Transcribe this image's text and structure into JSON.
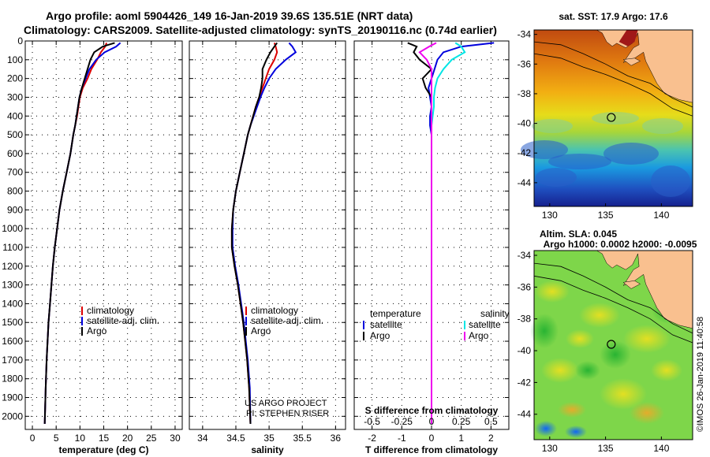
{
  "header": {
    "title_line1": "Argo profile: aoml 5904426_149 16-Jan-2019 39.6S 135.51E (NRT data)",
    "title_line2": "Climatology: CARS2009. Satellite-adjusted climatology: synTS_20190116.nc (0.74d earlier)"
  },
  "credits": {
    "project": "US ARGO PROJECT",
    "pi": "PI: STEPHEN RISER",
    "copyright": "©IMOS 26-Jan-2019 11:40:58"
  },
  "colors": {
    "climatology": "#dd0000",
    "satellite": "#0000dd",
    "argo": "#000000",
    "sat_salinity": "#00e5e5",
    "argo_salinity": "#ee00ee"
  },
  "chart_data": [
    {
      "type": "line",
      "id": "temperature",
      "xlabel": "temperature (deg C)",
      "ylabel": "",
      "xlim": [
        -1.5,
        31.5
      ],
      "ylim": [
        2070,
        0
      ],
      "xticks": [
        0,
        5,
        10,
        15,
        20,
        25,
        30
      ],
      "yticks": [
        0,
        100,
        200,
        300,
        400,
        500,
        600,
        700,
        800,
        900,
        1000,
        1100,
        1200,
        1300,
        1400,
        1500,
        1600,
        1700,
        1800,
        1900,
        2000
      ],
      "grid": "dotted",
      "legend": {
        "position": "lower-right",
        "entries": [
          "climatology",
          "satellite-adj. clim.",
          "Argo"
        ]
      },
      "series": [
        {
          "name": "climatology",
          "color_key": "climatology",
          "x": [
            15.6,
            15.3,
            14.4,
            13.6,
            12.4,
            11.6,
            10.6,
            10.0,
            9.7,
            9.4,
            9.0,
            8.6,
            8.0,
            7.2,
            6.4,
            5.7,
            5.2,
            4.7,
            4.3,
            4.0,
            3.7,
            3.4,
            3.2,
            3.0,
            2.8,
            2.6
          ],
          "y": [
            10,
            30,
            60,
            100,
            150,
            200,
            250,
            300,
            350,
            400,
            450,
            500,
            600,
            700,
            800,
            900,
            1000,
            1100,
            1200,
            1300,
            1400,
            1500,
            1600,
            1700,
            1850,
            2040
          ]
        },
        {
          "name": "satellite-adj. clim.",
          "color_key": "satellite",
          "x": [
            18.5,
            17.6,
            15.2,
            13.4,
            12.0,
            11.2,
            10.4,
            9.9,
            9.6,
            9.3,
            9.0,
            8.6,
            8.0,
            7.2,
            6.4,
            5.7,
            5.2,
            4.7,
            4.3,
            4.0,
            3.7,
            3.4,
            3.2,
            3.0,
            2.8,
            2.6
          ],
          "y": [
            10,
            30,
            60,
            100,
            150,
            200,
            250,
            300,
            350,
            400,
            450,
            500,
            600,
            700,
            800,
            900,
            1000,
            1100,
            1200,
            1300,
            1400,
            1500,
            1600,
            1700,
            1850,
            2040
          ]
        },
        {
          "name": "Argo",
          "color_key": "argo",
          "x": [
            17.3,
            14.8,
            13.0,
            12.2,
            11.6,
            11.0,
            10.4,
            9.9,
            9.6,
            9.3,
            9.0,
            8.6,
            8.0,
            7.2,
            6.4,
            5.7,
            5.2,
            4.7,
            4.3,
            4.0,
            3.7,
            3.4,
            3.2,
            3.0,
            2.8,
            2.6
          ],
          "y": [
            10,
            30,
            60,
            100,
            150,
            200,
            250,
            300,
            350,
            400,
            450,
            500,
            600,
            700,
            800,
            900,
            1000,
            1100,
            1200,
            1300,
            1400,
            1500,
            1600,
            1700,
            1850,
            2040
          ]
        }
      ]
    },
    {
      "type": "line",
      "id": "salinity",
      "xlabel": "salinity",
      "ylabel": "",
      "xlim": [
        33.8,
        36.15
      ],
      "ylim": [
        2070,
        0
      ],
      "xticks": [
        34,
        34.5,
        35,
        35.5,
        36
      ],
      "grid": "dotted",
      "legend": {
        "position": "lower-right",
        "entries": [
          "climatology",
          "satellite-adj. clim.",
          "Argo"
        ]
      },
      "series": [
        {
          "name": "climatology",
          "color_key": "climatology",
          "x": [
            35.08,
            35.1,
            35.12,
            35.08,
            35.0,
            34.95,
            34.9,
            34.85,
            34.8,
            34.76,
            34.72,
            34.68,
            34.62,
            34.56,
            34.5,
            34.46,
            34.44,
            34.44,
            34.48,
            34.53,
            34.57,
            34.61,
            34.64,
            34.67,
            34.7,
            34.72
          ],
          "y": [
            10,
            30,
            60,
            100,
            150,
            200,
            250,
            300,
            350,
            400,
            450,
            500,
            600,
            700,
            800,
            900,
            1000,
            1100,
            1200,
            1300,
            1400,
            1500,
            1600,
            1700,
            1850,
            2040
          ]
        },
        {
          "name": "satellite-adj. clim.",
          "color_key": "satellite",
          "x": [
            35.3,
            35.35,
            35.4,
            35.25,
            35.1,
            35.0,
            34.93,
            34.87,
            34.82,
            34.77,
            34.72,
            34.68,
            34.62,
            34.56,
            34.5,
            34.46,
            34.45,
            34.45,
            34.49,
            34.54,
            34.58,
            34.62,
            34.65,
            34.68,
            34.71,
            34.72
          ],
          "y": [
            10,
            30,
            60,
            100,
            150,
            200,
            250,
            300,
            350,
            400,
            450,
            500,
            600,
            700,
            800,
            900,
            1000,
            1100,
            1200,
            1300,
            1400,
            1500,
            1600,
            1700,
            1850,
            2040
          ]
        },
        {
          "name": "Argo",
          "color_key": "argo",
          "x": [
            35.12,
            35.08,
            35.02,
            34.96,
            34.9,
            34.9,
            34.88,
            34.85,
            34.8,
            34.76,
            34.72,
            34.68,
            34.62,
            34.56,
            34.5,
            34.46,
            34.44,
            34.44,
            34.48,
            34.53,
            34.57,
            34.61,
            34.64,
            34.67,
            34.7,
            34.72
          ],
          "y": [
            10,
            30,
            60,
            100,
            150,
            200,
            250,
            300,
            350,
            400,
            450,
            500,
            600,
            700,
            800,
            900,
            1000,
            1100,
            1200,
            1300,
            1400,
            1500,
            1600,
            1700,
            1850,
            2040
          ]
        }
      ]
    },
    {
      "type": "line",
      "id": "difference",
      "xlabel": "T difference from climatology",
      "xlabel2": "S difference from climatology",
      "xlim": [
        -2.6,
        2.6
      ],
      "ylim": [
        2070,
        0
      ],
      "xticks": [
        -2,
        -1,
        0,
        1,
        2
      ],
      "xticks2": [
        -0.5,
        -0.25,
        0,
        0.25,
        0.5
      ],
      "xticks2_labels": [
        "-0.5",
        "-0.25",
        "0",
        "0.25",
        "0.5"
      ],
      "grid": "dotted",
      "legend": {
        "position": "lower-center",
        "temperature_head": "temperature",
        "salinity_head": "salinity",
        "temperature_entries": [
          "satellite",
          "Argo"
        ],
        "salinity_entries": [
          "satellite",
          "Argo"
        ]
      },
      "series": [
        {
          "name": "satellite",
          "group": "temperature",
          "color_key": "satellite",
          "x": [
            2.1,
            1.0,
            0.4,
            0.2,
            0.1,
            0.0,
            -0.1,
            -0.05,
            0.0,
            -0.05,
            -0.05,
            0.0,
            0.0,
            0.0,
            0.0,
            0.0,
            0.0,
            0.0,
            0.0,
            0.0,
            0.0,
            0.0,
            0.0
          ],
          "y": [
            10,
            30,
            60,
            100,
            150,
            200,
            250,
            300,
            350,
            400,
            450,
            500,
            600,
            700,
            800,
            900,
            1000,
            1200,
            1400,
            1600,
            1800,
            1950,
            2040
          ]
        },
        {
          "name": "Argo",
          "group": "temperature",
          "color_key": "argo",
          "x": [
            -0.8,
            -0.5,
            -0.6,
            -0.4,
            0.0,
            -0.3,
            -0.2,
            0.0,
            0.0,
            0.0,
            0.0,
            0.0,
            0.0,
            0.0,
            0.0,
            0.0,
            0.0,
            0.0,
            0.0,
            0.0,
            0.0,
            0.0,
            0.0
          ],
          "y": [
            10,
            30,
            60,
            100,
            150,
            200,
            250,
            300,
            350,
            400,
            450,
            500,
            600,
            700,
            800,
            900,
            1000,
            1200,
            1400,
            1600,
            1800,
            1950,
            2040
          ]
        },
        {
          "name": "satellite",
          "group": "salinity",
          "color_key": "sat_salinity",
          "x": [
            0.2,
            0.25,
            0.28,
            0.17,
            0.1,
            0.05,
            0.03,
            0.02,
            0.02,
            0.01,
            0.0,
            0.0,
            0.0,
            0.0,
            0.0,
            0.0,
            0.0,
            0.0,
            0.0,
            0.0,
            0.0,
            0.0,
            0.0
          ],
          "y": [
            10,
            30,
            60,
            100,
            150,
            200,
            250,
            300,
            350,
            400,
            450,
            500,
            600,
            700,
            800,
            900,
            1000,
            1200,
            1400,
            1600,
            1800,
            1950,
            2040
          ]
        },
        {
          "name": "Argo",
          "group": "salinity",
          "color_key": "argo_salinity",
          "x": [
            0.04,
            -0.02,
            -0.1,
            -0.04,
            0.0,
            0.0,
            0.0,
            0.0,
            0.0,
            0.0,
            0.0,
            0.0,
            0.0,
            0.0,
            0.0,
            0.0,
            0.0,
            0.0,
            0.0,
            0.0,
            0.0,
            0.0,
            0.0
          ],
          "y": [
            10,
            30,
            60,
            100,
            150,
            200,
            250,
            300,
            350,
            400,
            450,
            500,
            600,
            700,
            800,
            900,
            1000,
            1200,
            1400,
            1600,
            1800,
            1950,
            2040
          ]
        }
      ]
    },
    {
      "type": "heatmap",
      "id": "sst_map",
      "title": "sat. SST: 17.9 Argo: 17.6",
      "xlim": [
        128.6,
        142.8
      ],
      "ylim": [
        -45.6,
        -33.7
      ],
      "xticks": [
        130,
        135,
        140
      ],
      "yticks": [
        -34,
        -36,
        -38,
        -40,
        -42,
        -44
      ],
      "profile_location": {
        "lon": 135.51,
        "lat": -39.6
      }
    },
    {
      "type": "heatmap",
      "id": "sla_map",
      "title": "Altim. SLA: 0.045",
      "subtitle": "Argo h1000: 0.0002 h2000: -0.0095",
      "xlim": [
        128.6,
        142.8
      ],
      "ylim": [
        -45.6,
        -33.7
      ],
      "xticks": [
        130,
        135,
        140
      ],
      "yticks": [
        -34,
        -36,
        -38,
        -40,
        -42,
        -44
      ],
      "profile_location": {
        "lon": 135.51,
        "lat": -39.6
      }
    }
  ]
}
